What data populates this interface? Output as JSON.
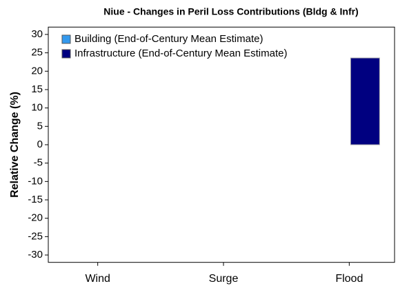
{
  "chart_data": {
    "type": "bar",
    "title": "Niue - Changes in Peril Loss Contributions (Bldg & Infr)",
    "y_label": "Relative Change (%)",
    "categories": [
      "Wind",
      "Surge",
      "Flood"
    ],
    "series": [
      {
        "name": "Building (End-of-Century Mean Estimate)",
        "color": "#3399ee",
        "values": [
          0,
          0,
          0
        ]
      },
      {
        "name": "Infrastructure (End-of-Century Mean Estimate)",
        "color": "#000080",
        "values": [
          0,
          0,
          23.6
        ]
      }
    ],
    "ylim": [
      -32,
      32
    ],
    "yticks": [
      -30,
      -25,
      -20,
      -15,
      -10,
      -5,
      0,
      5,
      10,
      15,
      20,
      25,
      30
    ],
    "legend": "upper left"
  }
}
